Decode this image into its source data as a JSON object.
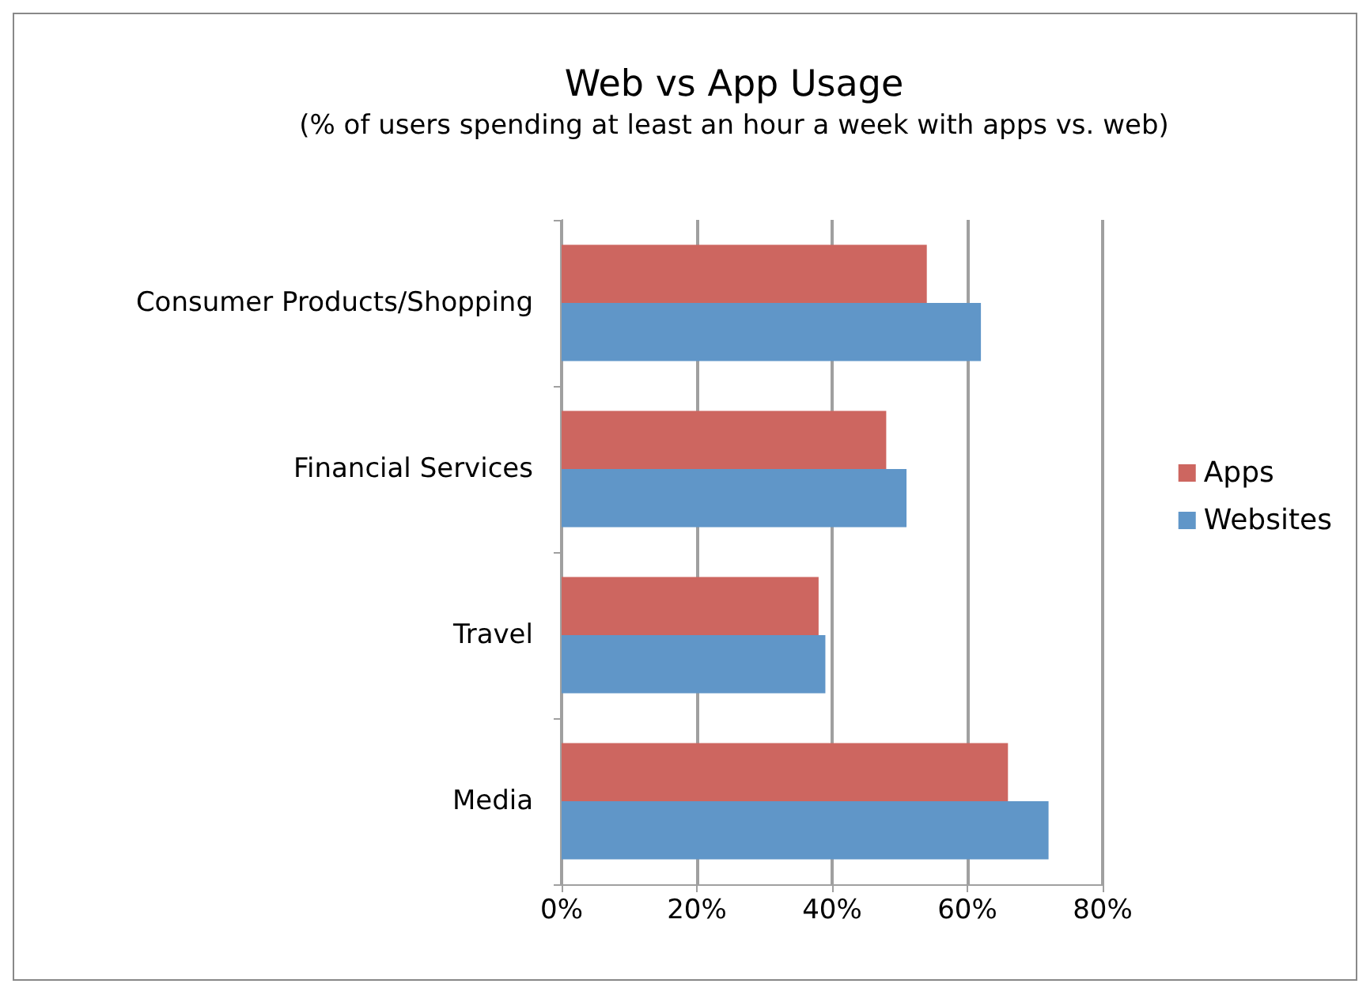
{
  "chart_data": {
    "type": "bar",
    "orientation": "horizontal",
    "title": "Web vs App Usage",
    "subtitle": "(% of users spending at least an hour a week with apps vs. web)",
    "categories": [
      "Consumer Products/Shopping",
      "Financial Services",
      "Travel",
      "Media"
    ],
    "series": [
      {
        "name": "Apps",
        "color": "#cd6660",
        "values": [
          54,
          48,
          38,
          66
        ]
      },
      {
        "name": "Websites",
        "color": "#6096c8",
        "values": [
          62,
          51,
          39,
          72
        ]
      }
    ],
    "xlim": [
      0,
      80
    ],
    "xticks": [
      {
        "value": 0,
        "label": "0%"
      },
      {
        "value": 20,
        "label": "20%"
      },
      {
        "value": 40,
        "label": "40%"
      },
      {
        "value": 60,
        "label": "60%"
      },
      {
        "value": 80,
        "label": "80%"
      }
    ],
    "grid": "x",
    "legend": "right"
  }
}
